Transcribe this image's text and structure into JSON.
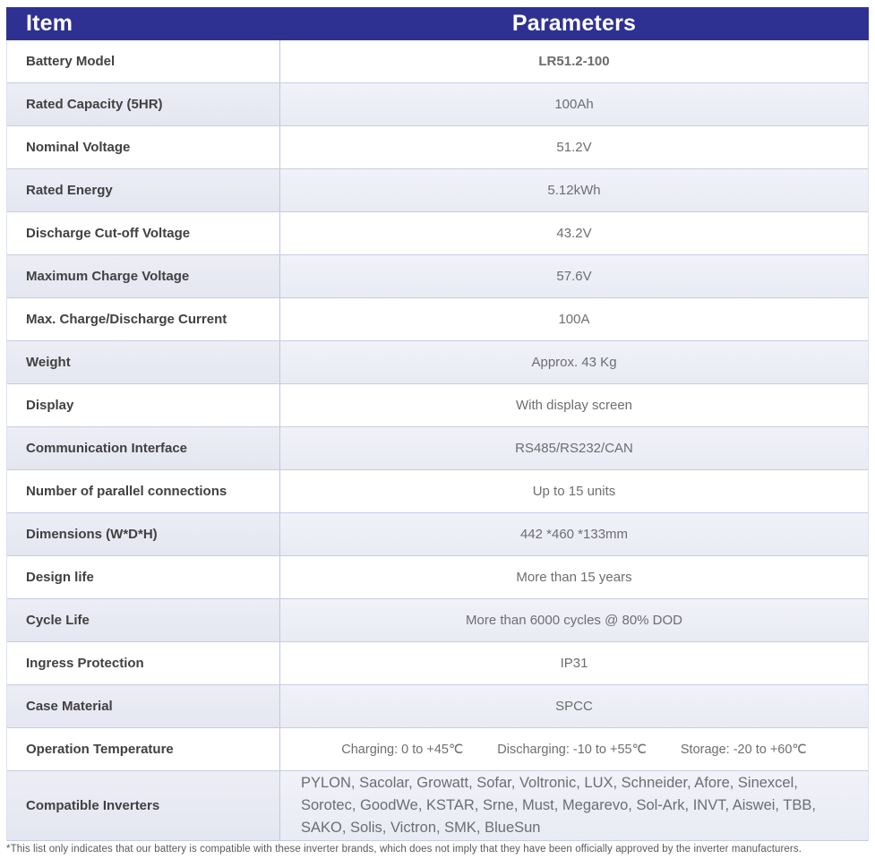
{
  "header": {
    "item": "Item",
    "parameters": "Parameters"
  },
  "rows": [
    {
      "item": "Battery Model",
      "value": "LR51.2-100"
    },
    {
      "item": "Rated Capacity (5HR)",
      "value": "100Ah"
    },
    {
      "item": "Nominal Voltage",
      "value": "51.2V"
    },
    {
      "item": "Rated Energy",
      "value": "5.12kWh"
    },
    {
      "item": "Discharge Cut-off Voltage",
      "value": "43.2V"
    },
    {
      "item": "Maximum Charge Voltage",
      "value": "57.6V"
    },
    {
      "item": "Max. Charge/Discharge Current",
      "value": "100A"
    },
    {
      "item": "Weight",
      "value": "Approx. 43 Kg"
    },
    {
      "item": "Display",
      "value": "With display screen"
    },
    {
      "item": "Communication Interface",
      "value": "RS485/RS232/CAN"
    },
    {
      "item": "Number of parallel connections",
      "value": "Up to 15 units"
    },
    {
      "item": "Dimensions (W*D*H)",
      "value": "442 *460 *133mm"
    },
    {
      "item": "Design life",
      "value": "More than 15 years"
    },
    {
      "item": "Cycle Life",
      "value": "More than 6000 cycles @ 80% DOD"
    },
    {
      "item": "Ingress Protection",
      "value": "IP31"
    },
    {
      "item": "Case Material",
      "value": "SPCC"
    },
    {
      "item": "Operation Temperature",
      "parts": [
        "Charging: 0 to +45℃",
        "Discharging: -10 to +55℃",
        "Storage: -20 to +60℃"
      ]
    },
    {
      "item": "Compatible Inverters",
      "value": "PYLON, Sacolar, Growatt, Sofar, Voltronic, LUX, Schneider, Afore, Sinexcel, Sorotec, GoodWe, KSTAR, Srne, Must, Megarevo, Sol-Ark, INVT, Aiswei, TBB, SAKO, Solis, Victron, SMK, BlueSun"
    }
  ],
  "footnote": "*This list only indicates that our battery is compatible with these inverter brands, which does not imply that they have been officially approved by the inverter manufacturers.",
  "colors": {
    "header_bg": "#2E3192",
    "header_text": "#FFFFFF",
    "shaded_row": "#EAECF5",
    "row_border": "#C7CCE3",
    "label_text": "#414042",
    "value_text": "#6D6E71"
  }
}
